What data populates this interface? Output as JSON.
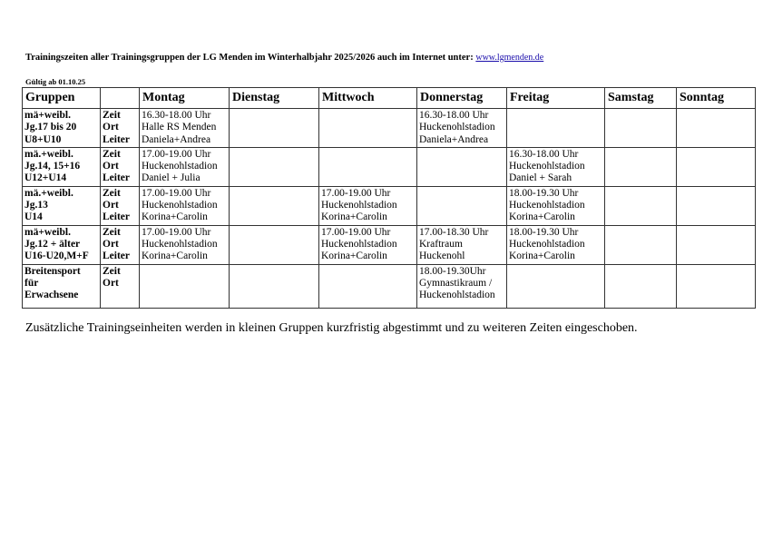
{
  "header": {
    "title": "Trainingszeiten aller Trainingsgruppen der LG Menden im Winterhalbjahr 2025/2026 auch im Internet unter:",
    "link": "www.lgmenden.de",
    "valid_from": "Gültig ab 01.10.25"
  },
  "table": {
    "columns": [
      "Gruppen",
      "",
      "Montag",
      "Dienstag",
      "Mittwoch",
      "Donnerstag",
      "Freitag",
      "Samstag",
      "Sonntag"
    ],
    "rows": [
      {
        "group": [
          "mä+weibl.",
          "Jg.17 bis 20",
          "U8+U10"
        ],
        "labels": [
          "Zeit",
          "Ort",
          "Leiter"
        ],
        "days": [
          [
            "16.30-18.00 Uhr",
            "Halle RS Menden",
            "Daniela+Andrea"
          ],
          [],
          [],
          [
            "16.30-18.00 Uhr",
            "Huckenohlstadion",
            "Daniela+Andrea"
          ],
          [],
          [],
          []
        ]
      },
      {
        "group": [
          "mä.+weibl.",
          "Jg.14, 15+16",
          "U12+U14"
        ],
        "labels": [
          "Zeit",
          "Ort",
          "Leiter"
        ],
        "days": [
          [
            "17.00-19.00 Uhr",
            "Huckenohlstadion",
            "Daniel + Julia"
          ],
          [],
          [],
          [],
          [
            "16.30-18.00 Uhr",
            "Huckenohlstadion",
            "Daniel + Sarah"
          ],
          [],
          []
        ]
      },
      {
        "group": [
          "mä.+weibl.",
          "Jg.13",
          "U14"
        ],
        "labels": [
          "Zeit",
          "Ort",
          "Leiter"
        ],
        "days": [
          [
            "17.00-19.00 Uhr",
            "Huckenohlstadion",
            "Korina+Carolin"
          ],
          [],
          [
            "17.00-19.00 Uhr",
            "Huckenohlstadion",
            "Korina+Carolin"
          ],
          [],
          [
            "18.00-19.30 Uhr",
            "Huckenohlstadion",
            "Korina+Carolin"
          ],
          [],
          []
        ]
      },
      {
        "group": [
          "mä+weibl.",
          "Jg.12 + älter",
          "U16-U20,M+F"
        ],
        "labels": [
          "Zeit",
          "Ort",
          "Leiter"
        ],
        "days": [
          [
            "17.00-19.00 Uhr",
            "Huckenohlstadion",
            "Korina+Carolin"
          ],
          [],
          [
            "17.00-19.00 Uhr",
            "Huckenohlstadion",
            "Korina+Carolin"
          ],
          [
            "17.00-18.30 Uhr",
            "Kraftraum",
            "Huckenohl"
          ],
          [
            "18.00-19.30 Uhr",
            "Huckenohlstadion",
            "Korina+Carolin"
          ],
          [],
          []
        ]
      },
      {
        "group": [
          "Breitensport",
          "für",
          "Erwachsene"
        ],
        "labels": [
          "Zeit",
          "Ort"
        ],
        "days": [
          [],
          [],
          [],
          [
            "18.00-19.30Uhr",
            "Gymnastikraum /",
            "Huckenohlstadion"
          ],
          [],
          [],
          []
        ]
      }
    ]
  },
  "footer_note": "Zusätzliche Trainingseinheiten werden in kleinen Gruppen kurzfristig abgestimmt und zu weiteren Zeiten eingeschoben."
}
